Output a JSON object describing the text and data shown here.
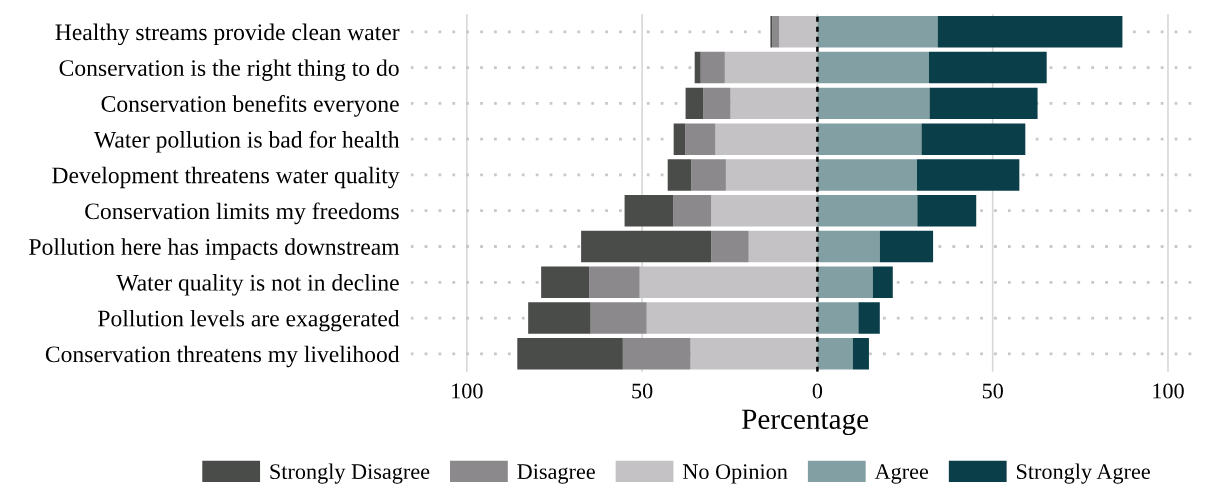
{
  "chart_data": {
    "type": "bar",
    "orientation": "horizontal",
    "stacked": true,
    "categories": [
      "Healthy streams provide clean water",
      "Conservation is the right thing to do",
      "Conservation benefits everyone",
      "Water pollution is bad for health",
      "Development threatens water quality",
      "Conservation limits my freedoms",
      "Pollution here has impacts downstream",
      "Water quality is not in decline",
      "Pollution levels are exaggerated",
      "Conservation threatens my livelihood"
    ],
    "series": [
      {
        "name": "No Opinion",
        "color": "#c4c2c5",
        "values": [
          -10.9,
          -26.4,
          -24.8,
          -29.1,
          -26.1,
          -30.3,
          -19.6,
          -50.7,
          -48.7,
          -36.2
        ]
      },
      {
        "name": "Disagree",
        "color": "#8b898c",
        "values": [
          -2.0,
          -6.9,
          -7.8,
          -8.6,
          -9.9,
          -10.8,
          -10.7,
          -14.4,
          -16.0,
          -19.3
        ]
      },
      {
        "name": "Strongly Disagree",
        "color": "#4a4c49",
        "values": [
          -0.5,
          -1.7,
          -5.0,
          -3.3,
          -6.7,
          -13.9,
          -37.1,
          -13.7,
          -17.8,
          -30.1
        ]
      },
      {
        "name": "Agree",
        "color": "#82a0a3",
        "values": [
          34.3,
          31.8,
          32.0,
          29.7,
          28.4,
          28.5,
          17.8,
          15.8,
          11.7,
          10.1
        ]
      },
      {
        "name": "Strongly Agree",
        "color": "#0a3e48",
        "values": [
          52.7,
          33.6,
          30.8,
          29.6,
          29.2,
          16.8,
          15.2,
          5.7,
          6.1,
          4.6
        ]
      }
    ],
    "xlabel": "Percentage",
    "xlim": [
      -116,
      109
    ],
    "xticks": [
      {
        "value": -100,
        "label": "100"
      },
      {
        "value": -50,
        "label": "50"
      },
      0,
      50,
      100
    ],
    "ref_lines": [
      {
        "axis": "x",
        "value": 0,
        "color": "#000000",
        "line_style": "dashed"
      }
    ],
    "grid": true,
    "legend": "bottom"
  }
}
